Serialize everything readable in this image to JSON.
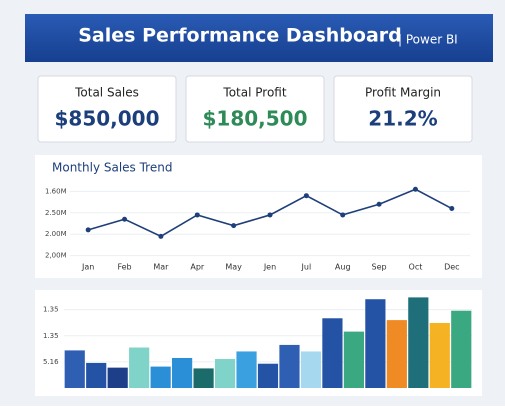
{
  "header": {
    "title": "Sales Performance Dashboard",
    "tag": "| Power BI"
  },
  "kpis": [
    {
      "label": "Total Sales",
      "value": "$850,000",
      "color": "#1c3f7c"
    },
    {
      "label": "Total Profit",
      "value": "$180,500",
      "color": "#2e8b57"
    },
    {
      "label": "Profit Margin",
      "value": "21.2%",
      "color": "#1c3f7c"
    }
  ],
  "chart_data": [
    {
      "type": "line",
      "title": "Monthly Sales Trend",
      "color": "#1f3f7a",
      "categories": [
        "Jan",
        "Feb",
        "Mar",
        "Apr",
        "May",
        "Jen",
        "Jul",
        "Aug",
        "Sep",
        "Oct",
        "Dec"
      ],
      "values": [
        2.2,
        2.7,
        1.9,
        2.9,
        2.4,
        2.9,
        3.8,
        2.9,
        3.4,
        4.1,
        3.2
      ],
      "ylim": [
        0.7,
        4.3
      ],
      "yticks": [
        {
          "value": 4,
          "label": "1.60M"
        },
        {
          "value": 3,
          "label": "2.50M"
        },
        {
          "value": 2,
          "label": "2.00M"
        },
        {
          "value": 1,
          "label": "2,00M"
        }
      ],
      "grid": true
    },
    {
      "type": "bar",
      "values": [
        1.44,
        0.96,
        0.78,
        1.55,
        0.82,
        1.15,
        0.75,
        1.11,
        1.4,
        0.93,
        1.65,
        1.4,
        2.67,
        2.16,
        3.4,
        2.6,
        3.47,
        2.49,
        2.96
      ],
      "colors": [
        "#2f5fb3",
        "#2452a5",
        "#1d3f8a",
        "#7fd3c8",
        "#2a8fd6",
        "#2a8fd6",
        "#1c6b6b",
        "#7fd3c8",
        "#3aa0e0",
        "#2452a5",
        "#2f5fb3",
        "#a6d8f0",
        "#2452a5",
        "#3aa881",
        "#2452a5",
        "#f08a24",
        "#1f6f7a",
        "#f5b324",
        "#3aa881"
      ],
      "ylim": [
        0,
        3.6
      ],
      "yticks": [
        {
          "value": 3,
          "label": "1.35"
        },
        {
          "value": 2,
          "label": "1.35"
        },
        {
          "value": 1,
          "label": "5.16"
        }
      ],
      "grid": true
    }
  ]
}
